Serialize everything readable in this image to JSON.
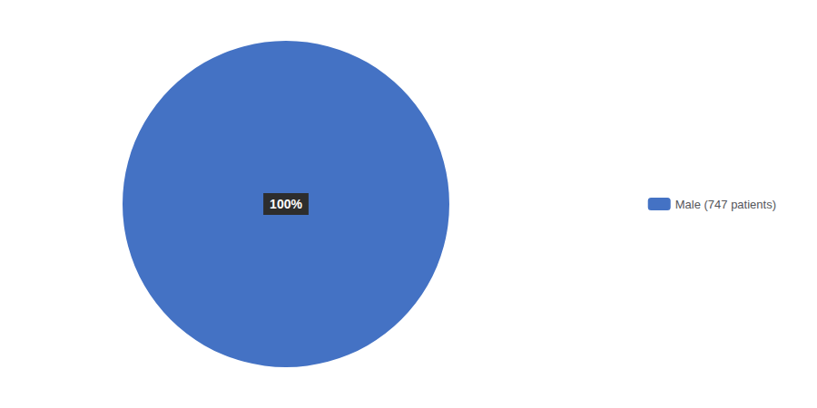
{
  "chart_data": {
    "type": "pie",
    "categories": [
      "Male (747 patients)"
    ],
    "values": [
      100
    ],
    "value_labels": [
      "100%"
    ],
    "data_labels": true,
    "colors": [
      "#4472C4"
    ],
    "legend": "right"
  }
}
